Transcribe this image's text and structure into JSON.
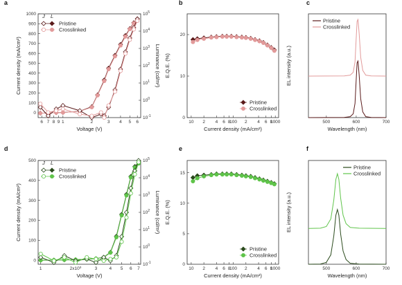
{
  "colors": {
    "pristine_red": "#5a1a1a",
    "crosslinked_red": "#e29a9a",
    "pristine_green": "#2a4a1c",
    "crosslinked_green": "#5fc44a",
    "axis": "#333333"
  },
  "chart_data": [
    {
      "panel": "a",
      "type": "line",
      "xlabel": "Voltage (V)",
      "ylabel": "Current density (mA/cm²)",
      "y2label": "Luminance (cd/m²)",
      "xscale": "log",
      "xlim": [
        0.55,
        6.5
      ],
      "xticks": [
        {
          "v": 0.6,
          "t": "6"
        },
        {
          "v": 0.7,
          "t": "7"
        },
        {
          "v": 0.8,
          "t": "8"
        },
        {
          "v": 0.9,
          "t": "9"
        },
        {
          "v": 1,
          "t": "1"
        },
        {
          "v": 2,
          "t": "2"
        },
        {
          "v": 3,
          "t": "3"
        },
        {
          "v": 4,
          "t": "4"
        },
        {
          "v": 5,
          "t": "5"
        },
        {
          "v": 6,
          "t": "6"
        }
      ],
      "ylim": [
        -50,
        1000
      ],
      "yticks": [
        0,
        100,
        200,
        300,
        400,
        500,
        600,
        700,
        800,
        900,
        1000
      ],
      "y2log": [
        -1,
        5
      ],
      "y2ticks": [
        -1,
        0,
        1,
        2,
        3,
        4,
        5
      ],
      "legend_marker_labels": [
        "J",
        "L"
      ],
      "series": [
        {
          "name": "Pristine",
          "axis": "y",
          "color": "#5a1a1a",
          "marker": "diamond",
          "x": [
            0.58,
            0.7,
            0.85,
            1.0,
            1.5,
            2.0,
            2.3,
            2.7,
            3.0,
            3.5,
            4.0,
            4.5,
            5.0,
            5.5,
            6.0
          ],
          "y": [
            -5,
            -3,
            0,
            2,
            15,
            60,
            180,
            330,
            450,
            580,
            690,
            780,
            850,
            910,
            950
          ]
        },
        {
          "name": "Crosslinked",
          "axis": "y",
          "color": "#e29a9a",
          "marker": "circle",
          "x": [
            0.58,
            0.7,
            0.85,
            1.0,
            1.5,
            2.0,
            2.3,
            2.7,
            3.0,
            3.5,
            4.0,
            4.5,
            5.0,
            5.5,
            6.0
          ],
          "y": [
            -5,
            -3,
            0,
            2,
            14,
            55,
            175,
            320,
            440,
            570,
            680,
            770,
            845,
            905,
            945
          ]
        },
        {
          "name": "Pristine",
          "axis": "y2",
          "color": "#5a1a1a",
          "marker": "diamond",
          "x": [
            0.58,
            0.7,
            0.85,
            1.0,
            1.5,
            2.0,
            2.5,
            2.7,
            3.0,
            3.5,
            4.0,
            4.5,
            5.0,
            5.5,
            6.0
          ],
          "y": [
            -0.4,
            -0.9,
            -0.5,
            -0.3,
            -0.6,
            -1,
            -0.8,
            -0.9,
            -0.4,
            0.6,
            1.8,
            2.8,
            3.6,
            4.2,
            4.7
          ]
        },
        {
          "name": "Crosslinked",
          "axis": "y2",
          "color": "#e29a9a",
          "marker": "circle",
          "x": [
            0.58,
            0.7,
            0.85,
            1.0,
            1.5,
            2.0,
            2.5,
            2.7,
            3.0,
            3.5,
            4.0,
            4.5,
            5.0,
            5.5,
            6.0
          ],
          "y": [
            -0.2,
            -0.7,
            -0.6,
            -0.5,
            -0.8,
            -0.9,
            -0.7,
            -1,
            -0.3,
            0.5,
            1.7,
            2.7,
            3.5,
            4.1,
            4.6
          ]
        }
      ]
    },
    {
      "panel": "b",
      "type": "line",
      "xlabel": "Current density (mA/cm²)",
      "ylabel": "E.Q.E. (%)",
      "xscale": "log",
      "xlim": [
        8,
        1200
      ],
      "xticks": [
        {
          "v": 10,
          "t": "10"
        },
        {
          "v": 20,
          "t": "2"
        },
        {
          "v": 40,
          "t": "4"
        },
        {
          "v": 60,
          "t": "6"
        },
        {
          "v": 80,
          "t": "8"
        },
        {
          "v": 100,
          "t": "100"
        },
        {
          "v": 200,
          "t": "2"
        },
        {
          "v": 400,
          "t": "4"
        },
        {
          "v": 600,
          "t": "6"
        },
        {
          "v": 800,
          "t": "8"
        },
        {
          "v": 1000,
          "t": "1000"
        }
      ],
      "ylim": [
        0,
        25
      ],
      "yticks": [
        0,
        10,
        20
      ],
      "legend_position": "bottom-right",
      "series": [
        {
          "name": "Pristine",
          "color": "#5a1a1a",
          "marker": "diamond",
          "x": [
            11,
            14,
            20,
            30,
            40,
            55,
            70,
            90,
            120,
            160,
            200,
            260,
            330,
            420,
            520,
            650,
            800,
            950
          ],
          "y": [
            18.8,
            19.0,
            19.2,
            19.4,
            19.5,
            19.6,
            19.6,
            19.6,
            19.5,
            19.4,
            19.3,
            19.1,
            18.8,
            18.5,
            18.1,
            17.5,
            16.9,
            16.3
          ]
        },
        {
          "name": "Crosslinked",
          "color": "#e29a9a",
          "marker": "circle",
          "x": [
            11,
            14,
            20,
            30,
            40,
            55,
            70,
            90,
            120,
            160,
            200,
            260,
            330,
            420,
            520,
            650,
            800,
            950
          ],
          "y": [
            18.2,
            18.7,
            19.0,
            19.3,
            19.4,
            19.5,
            19.5,
            19.5,
            19.4,
            19.3,
            19.2,
            19.0,
            18.7,
            18.4,
            18.0,
            17.4,
            16.8,
            16.1
          ]
        }
      ]
    },
    {
      "panel": "c",
      "type": "line",
      "xlabel": "Wavelength (nm)",
      "ylabel": "EL intensity (a.u.)",
      "xlim": [
        440,
        700
      ],
      "xticks": [
        500,
        600,
        700
      ],
      "legend_position": "top-left",
      "series": [
        {
          "name": "Pristine",
          "color": "#5a1a1a",
          "x": [
            440,
            560,
            580,
            590,
            596,
            600,
            603,
            606,
            610,
            615,
            622,
            632,
            650,
            700
          ],
          "y": [
            0,
            0.2,
            1,
            4,
            15,
            40,
            58,
            60,
            45,
            20,
            6,
            1,
            0.2,
            0
          ]
        },
        {
          "name": "Crosslinked",
          "color": "#e29a9a",
          "baseline": 44,
          "x": [
            440,
            560,
            580,
            590,
            596,
            600,
            603,
            606,
            610,
            615,
            622,
            632,
            650,
            700
          ],
          "y": [
            0,
            0.2,
            1,
            4,
            15,
            40,
            58,
            60,
            45,
            20,
            6,
            1,
            0.2,
            0
          ]
        }
      ]
    },
    {
      "panel": "d",
      "type": "line",
      "xlabel": "Voltage (V)",
      "ylabel": "Current density (mA/cm²)",
      "y2label": "Luminance (cd/m²)",
      "xscale": "log",
      "xlim": [
        0.95,
        7.3
      ],
      "xticks": [
        {
          "v": 1,
          "t": "1"
        },
        {
          "v": 2,
          "t": "2x10⁰"
        },
        {
          "v": 3,
          "t": "3"
        },
        {
          "v": 4,
          "t": "4"
        },
        {
          "v": 5,
          "t": "5"
        },
        {
          "v": 6,
          "t": "6"
        },
        {
          "v": 7,
          "t": "7"
        }
      ],
      "ylim": [
        -20,
        500
      ],
      "yticks": [
        0,
        100,
        200,
        300,
        400,
        500
      ],
      "y2log": [
        -1,
        5
      ],
      "y2ticks": [
        -1,
        0,
        1,
        2,
        3,
        4,
        5
      ],
      "legend_marker_labels": [
        "J",
        "L"
      ],
      "series": [
        {
          "name": "Pristine",
          "axis": "y",
          "color": "#2a4a1c",
          "marker": "diamond",
          "x": [
            1.0,
            1.3,
            1.6,
            2.0,
            2.5,
            3.0,
            3.5,
            4.0,
            4.5,
            5.0,
            5.5,
            6.0,
            6.5,
            7.0
          ],
          "y": [
            0,
            1,
            2,
            3,
            5,
            8,
            15,
            40,
            120,
            230,
            330,
            420,
            470,
            490
          ]
        },
        {
          "name": "Crosslinked",
          "axis": "y",
          "color": "#5fc44a",
          "marker": "circle",
          "x": [
            1.0,
            1.3,
            1.6,
            2.0,
            2.5,
            3.0,
            3.5,
            4.0,
            4.5,
            5.0,
            5.5,
            6.0,
            6.5,
            7.0
          ],
          "y": [
            0,
            1,
            2,
            3,
            5,
            8,
            14,
            38,
            115,
            225,
            325,
            415,
            465,
            485
          ]
        },
        {
          "name": "Pristine",
          "axis": "y2",
          "color": "#2a4a1c",
          "marker": "diamond",
          "x": [
            1.0,
            1.3,
            1.6,
            2.0,
            2.5,
            3.0,
            3.5,
            4.0,
            4.5,
            5.0,
            5.5,
            6.0,
            6.5,
            7.0
          ],
          "y": [
            -0.6,
            -0.9,
            -0.5,
            -0.8,
            -0.7,
            -0.9,
            -0.6,
            -0.8,
            -0.5,
            0.6,
            2.0,
            3.4,
            4.4,
            5.0
          ]
        },
        {
          "name": "Crosslinked",
          "axis": "y2",
          "color": "#5fc44a",
          "marker": "circle",
          "x": [
            1.0,
            1.3,
            1.6,
            2.0,
            2.5,
            3.0,
            3.5,
            4.0,
            4.5,
            5.0,
            5.5,
            6.0,
            6.5,
            7.0
          ],
          "y": [
            -0.4,
            -0.8,
            -0.6,
            -0.9,
            -0.6,
            -0.7,
            -0.8,
            -0.7,
            -0.6,
            0.3,
            1.7,
            3.1,
            4.2,
            4.9
          ]
        }
      ]
    },
    {
      "panel": "e",
      "type": "line",
      "xlabel": "Current density (mA/cm²)",
      "ylabel": "E.Q.E. (%)",
      "xscale": "log",
      "xlim": [
        8,
        1200
      ],
      "xticks": [
        {
          "v": 10,
          "t": "10"
        },
        {
          "v": 20,
          "t": "2"
        },
        {
          "v": 40,
          "t": "4"
        },
        {
          "v": 60,
          "t": "6"
        },
        {
          "v": 80,
          "t": "8"
        },
        {
          "v": 100,
          "t": "100"
        },
        {
          "v": 200,
          "t": "2"
        },
        {
          "v": 400,
          "t": "4"
        },
        {
          "v": 600,
          "t": "6"
        },
        {
          "v": 800,
          "t": "8"
        },
        {
          "v": 1000,
          "t": "1000"
        }
      ],
      "ylim": [
        0,
        17
      ],
      "yticks": [
        0,
        5,
        10,
        15
      ],
      "legend_position": "bottom-right",
      "series": [
        {
          "name": "Pristine",
          "color": "#2a4a1c",
          "marker": "diamond",
          "x": [
            11,
            14,
            20,
            30,
            40,
            55,
            70,
            90,
            120,
            160,
            200,
            260,
            330,
            420,
            520,
            650,
            800,
            950
          ],
          "y": [
            14.2,
            14.5,
            14.6,
            14.7,
            14.8,
            14.8,
            14.8,
            14.8,
            14.7,
            14.6,
            14.5,
            14.4,
            14.2,
            14.0,
            13.8,
            13.6,
            13.4,
            13.2
          ]
        },
        {
          "name": "Crosslinked",
          "color": "#5fc44a",
          "marker": "circle",
          "x": [
            11,
            14,
            20,
            30,
            40,
            55,
            70,
            90,
            120,
            160,
            200,
            260,
            330,
            420,
            520,
            650,
            800,
            950
          ],
          "y": [
            13.6,
            14.1,
            14.4,
            14.6,
            14.7,
            14.7,
            14.7,
            14.7,
            14.6,
            14.5,
            14.4,
            14.3,
            14.1,
            13.9,
            13.7,
            13.5,
            13.3,
            13.1
          ]
        }
      ]
    },
    {
      "panel": "f",
      "type": "line",
      "xlabel": "Wavelength (nm)",
      "ylabel": "EL intensity (a.u.)",
      "xlim": [
        440,
        700
      ],
      "xticks": [
        500,
        600,
        700
      ],
      "legend_position": "top-right",
      "series": [
        {
          "name": "Pristine",
          "color": "#2a4a1c",
          "x": [
            440,
            480,
            500,
            515,
            525,
            532,
            537,
            542,
            548,
            556,
            566,
            580,
            610,
            700
          ],
          "y": [
            0,
            0.2,
            2,
            10,
            30,
            52,
            58,
            52,
            32,
            14,
            5,
            1,
            0.2,
            0
          ]
        },
        {
          "name": "Crosslinked",
          "color": "#5fc44a",
          "baseline": 38,
          "x": [
            440,
            480,
            500,
            515,
            525,
            532,
            537,
            542,
            548,
            556,
            566,
            580,
            610,
            700
          ],
          "y": [
            0,
            0.2,
            2,
            10,
            30,
            52,
            58,
            52,
            32,
            14,
            5,
            1,
            0.2,
            0
          ]
        }
      ]
    }
  ],
  "panel_labels": [
    "a",
    "b",
    "c",
    "d",
    "e",
    "f"
  ]
}
